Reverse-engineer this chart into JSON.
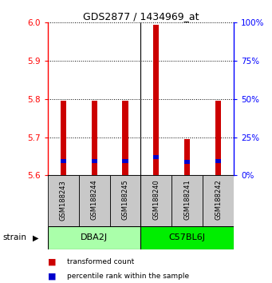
{
  "title": "GDS2877 / 1434969_at",
  "samples": [
    "GSM188243",
    "GSM188244",
    "GSM188245",
    "GSM188240",
    "GSM188241",
    "GSM188242"
  ],
  "groups": [
    {
      "name": "DBA2J",
      "samples": [
        0,
        1,
        2
      ],
      "color": "#aaffaa"
    },
    {
      "name": "C57BL6J",
      "samples": [
        3,
        4,
        5
      ],
      "color": "#00ee00"
    }
  ],
  "red_values": [
    5.795,
    5.795,
    5.795,
    5.995,
    5.695,
    5.795
  ],
  "blue_values": [
    5.638,
    5.638,
    5.638,
    5.648,
    5.635,
    5.638
  ],
  "base_value": 5.6,
  "ylim": [
    5.6,
    6.0
  ],
  "yticks_left": [
    5.6,
    5.7,
    5.8,
    5.9,
    6.0
  ],
  "yticks_right": [
    0,
    25,
    50,
    75,
    100
  ],
  "bar_width": 0.18,
  "red_color": "#cc0000",
  "blue_color": "#0000cc",
  "legend_red": "transformed count",
  "legend_blue": "percentile rank within the sample",
  "strain_label": "strain"
}
